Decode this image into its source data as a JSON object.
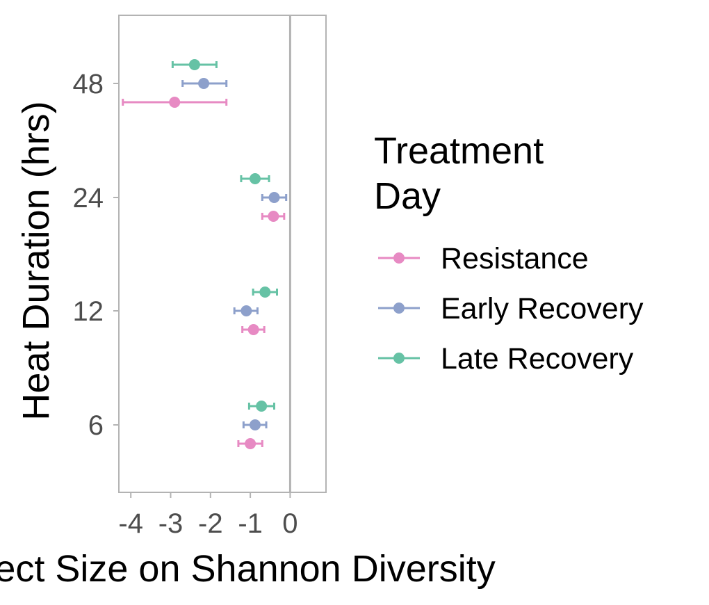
{
  "chart_data": {
    "type": "scatter",
    "subtype": "forest-plot-with-error-bars",
    "xlabel": "Effect Size on Shannon Diversity",
    "ylabel": "Heat Duration (hrs)",
    "xlim": [
      -4.3,
      0.9
    ],
    "x_ticks": [
      -4,
      -3,
      -2,
      -1,
      0
    ],
    "y_ticks": [
      "6",
      "12",
      "24",
      "48"
    ],
    "reference_line_x": 0,
    "grid": false,
    "legend": {
      "title": "Treatment Day",
      "title_lines": [
        "Treatment",
        "Day"
      ],
      "position": "right"
    },
    "series": [
      {
        "name": "Resistance",
        "color": "#e78ac3",
        "points": [
          {
            "heat_duration": "6",
            "estimate": -1.0,
            "lower": -1.3,
            "upper": -0.7
          },
          {
            "heat_duration": "12",
            "estimate": -0.92,
            "lower": -1.2,
            "upper": -0.65
          },
          {
            "heat_duration": "24",
            "estimate": -0.42,
            "lower": -0.7,
            "upper": -0.15
          },
          {
            "heat_duration": "48",
            "estimate": -2.9,
            "lower": -4.2,
            "upper": -1.6
          }
        ]
      },
      {
        "name": "Early Recovery",
        "color": "#8da0cb",
        "points": [
          {
            "heat_duration": "6",
            "estimate": -0.88,
            "lower": -1.17,
            "upper": -0.6
          },
          {
            "heat_duration": "12",
            "estimate": -1.1,
            "lower": -1.4,
            "upper": -0.82
          },
          {
            "heat_duration": "24",
            "estimate": -0.4,
            "lower": -0.7,
            "upper": -0.1
          },
          {
            "heat_duration": "48",
            "estimate": -2.17,
            "lower": -2.7,
            "upper": -1.6
          }
        ]
      },
      {
        "name": "Late Recovery",
        "color": "#66c2a5",
        "points": [
          {
            "heat_duration": "6",
            "estimate": -0.72,
            "lower": -1.03,
            "upper": -0.4
          },
          {
            "heat_duration": "12",
            "estimate": -0.63,
            "lower": -0.93,
            "upper": -0.33
          },
          {
            "heat_duration": "24",
            "estimate": -0.88,
            "lower": -1.23,
            "upper": -0.53
          },
          {
            "heat_duration": "48",
            "estimate": -2.4,
            "lower": -2.95,
            "upper": -1.85
          }
        ]
      }
    ]
  }
}
